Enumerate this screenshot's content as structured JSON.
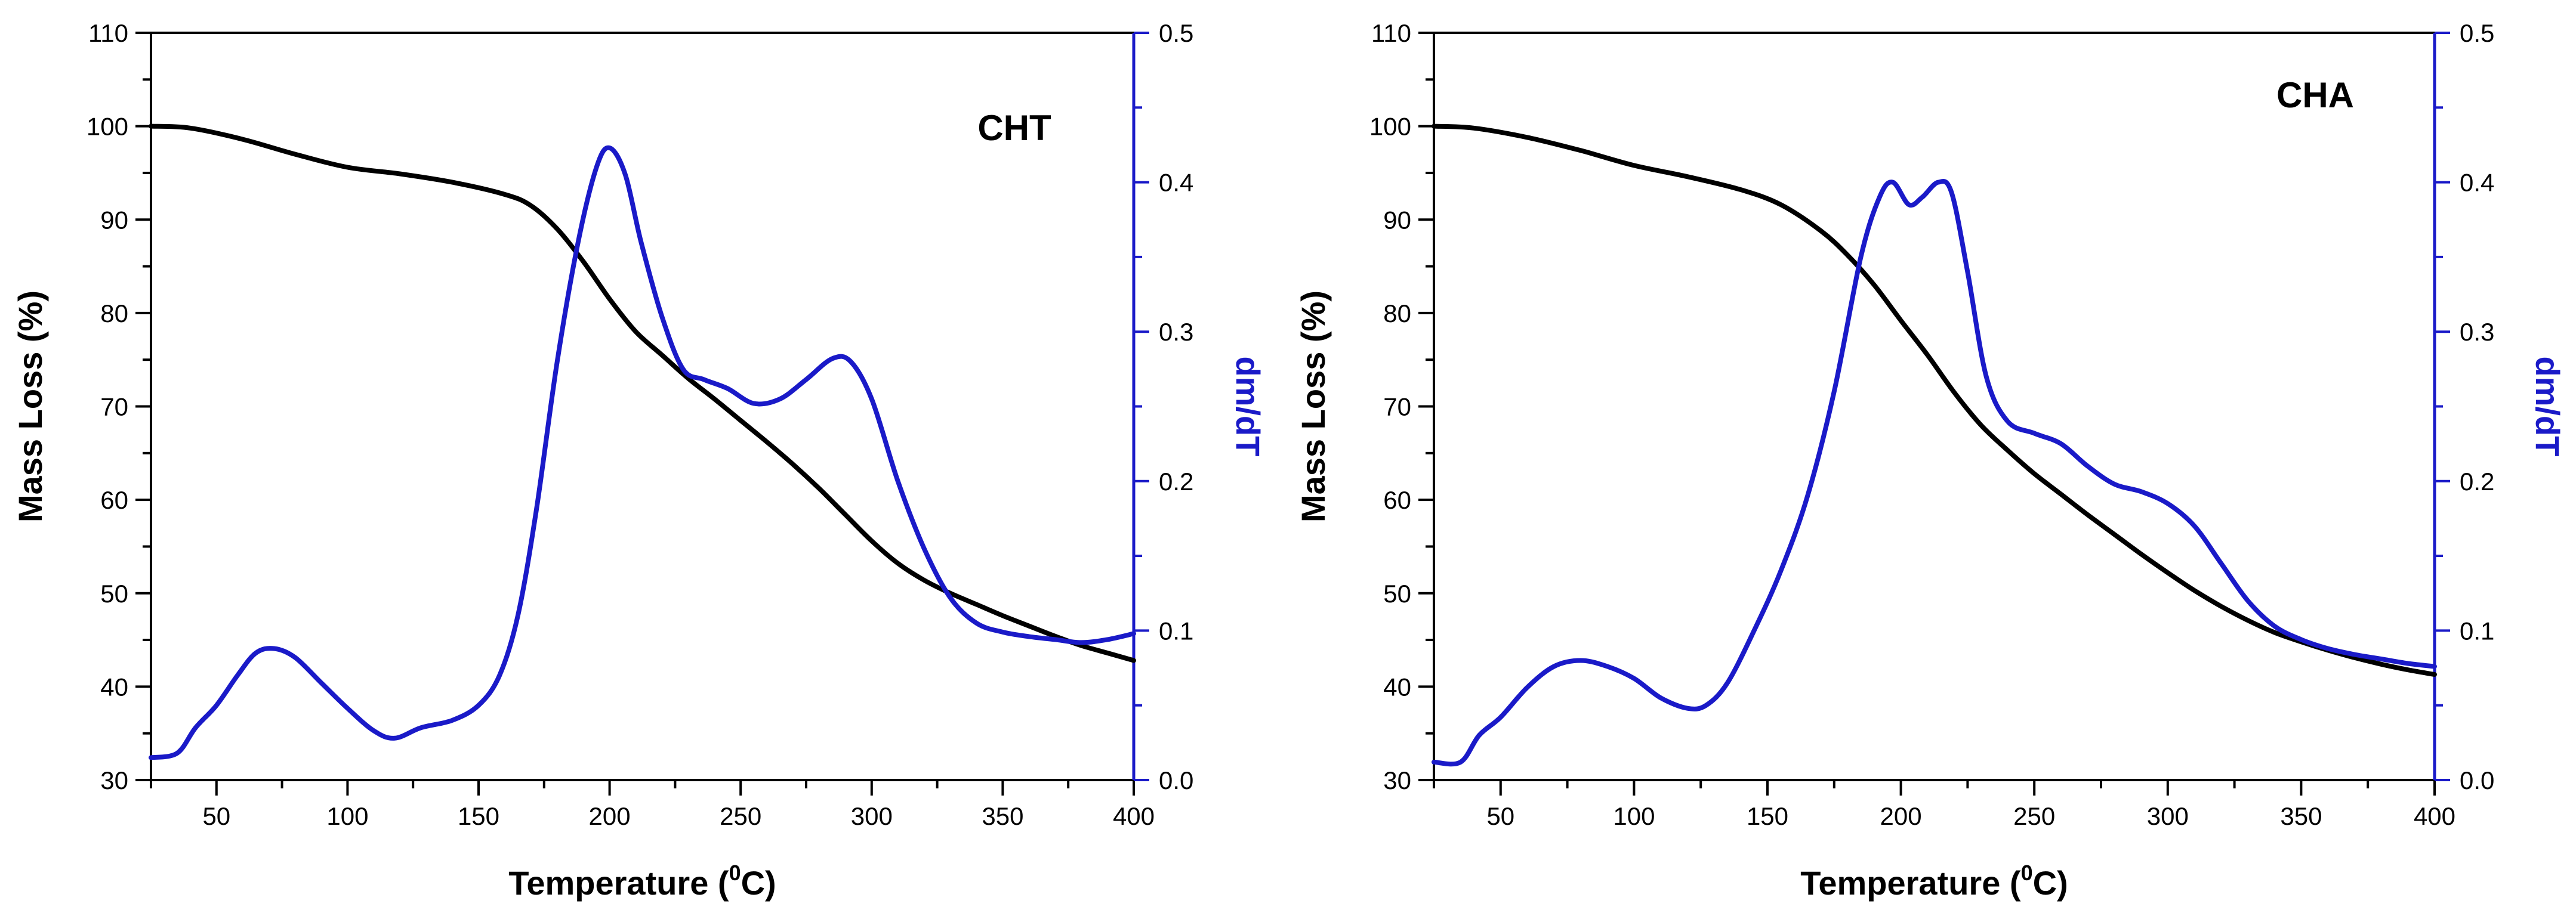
{
  "chart_data": [
    {
      "type": "line",
      "label": "CHT",
      "xlabel": "Temperature (",
      "xlabel_sup": "0",
      "xlabel_suffix": "C)",
      "ylabel": "Mass Loss (%)",
      "y2label": "dm/dT",
      "xlim": [
        25,
        400
      ],
      "ylim": [
        30,
        110
      ],
      "y2lim": [
        0.0,
        0.5
      ],
      "xticks": [
        50,
        100,
        150,
        200,
        250,
        300,
        350,
        400
      ],
      "yticks": [
        30,
        40,
        50,
        60,
        70,
        80,
        90,
        100,
        110
      ],
      "y2ticks": [
        "0.0",
        "0.1",
        "0.2",
        "0.3",
        "0.4",
        "0.5"
      ],
      "series": [
        {
          "name": "Mass Loss",
          "axis": "left",
          "color": "#000000",
          "points": [
            [
              25,
              100
            ],
            [
              40,
              99.8
            ],
            [
              60,
              98.6
            ],
            [
              80,
              97
            ],
            [
              100,
              95.6
            ],
            [
              120,
              94.9
            ],
            [
              140,
              94
            ],
            [
              160,
              92.7
            ],
            [
              170,
              91.5
            ],
            [
              180,
              89
            ],
            [
              190,
              85.5
            ],
            [
              200,
              81.5
            ],
            [
              210,
              78
            ],
            [
              220,
              75.5
            ],
            [
              230,
              73
            ],
            [
              240,
              70.8
            ],
            [
              250,
              68.5
            ],
            [
              260,
              66.2
            ],
            [
              270,
              63.8
            ],
            [
              280,
              61.2
            ],
            [
              290,
              58.4
            ],
            [
              300,
              55.6
            ],
            [
              310,
              53.2
            ],
            [
              320,
              51.4
            ],
            [
              330,
              50
            ],
            [
              340,
              48.8
            ],
            [
              350,
              47.6
            ],
            [
              360,
              46.5
            ],
            [
              370,
              45.4
            ],
            [
              380,
              44.4
            ],
            [
              390,
              43.6
            ],
            [
              400,
              42.8
            ]
          ]
        },
        {
          "name": "dm/dT",
          "axis": "right",
          "color": "#1a1ac8",
          "points": [
            [
              25,
              0.015
            ],
            [
              35,
              0.018
            ],
            [
              42,
              0.035
            ],
            [
              50,
              0.05
            ],
            [
              58,
              0.07
            ],
            [
              65,
              0.085
            ],
            [
              72,
              0.088
            ],
            [
              80,
              0.082
            ],
            [
              90,
              0.065
            ],
            [
              100,
              0.048
            ],
            [
              110,
              0.033
            ],
            [
              118,
              0.028
            ],
            [
              128,
              0.035
            ],
            [
              140,
              0.04
            ],
            [
              150,
              0.05
            ],
            [
              158,
              0.07
            ],
            [
              165,
              0.11
            ],
            [
              172,
              0.18
            ],
            [
              180,
              0.28
            ],
            [
              188,
              0.36
            ],
            [
              195,
              0.41
            ],
            [
              200,
              0.423
            ],
            [
              206,
              0.405
            ],
            [
              212,
              0.36
            ],
            [
              220,
              0.31
            ],
            [
              228,
              0.275
            ],
            [
              236,
              0.268
            ],
            [
              245,
              0.262
            ],
            [
              255,
              0.252
            ],
            [
              265,
              0.255
            ],
            [
              275,
              0.268
            ],
            [
              285,
              0.282
            ],
            [
              292,
              0.28
            ],
            [
              300,
              0.255
            ],
            [
              310,
              0.2
            ],
            [
              320,
              0.155
            ],
            [
              330,
              0.122
            ],
            [
              340,
              0.105
            ],
            [
              350,
              0.099
            ],
            [
              360,
              0.096
            ],
            [
              370,
              0.094
            ],
            [
              380,
              0.092
            ],
            [
              390,
              0.094
            ],
            [
              400,
              0.098
            ]
          ]
        }
      ]
    },
    {
      "type": "line",
      "label": "CHA",
      "xlabel": "Temperature (",
      "xlabel_sup": "0",
      "xlabel_suffix": "C)",
      "ylabel": "Mass Loss (%)",
      "y2label": "dm/dT",
      "xlim": [
        25,
        400
      ],
      "ylim": [
        30,
        110
      ],
      "y2lim": [
        0.0,
        0.5
      ],
      "xticks": [
        50,
        100,
        150,
        200,
        250,
        300,
        350,
        400
      ],
      "yticks": [
        30,
        40,
        50,
        60,
        70,
        80,
        90,
        100,
        110
      ],
      "y2ticks": [
        "0.0",
        "0.1",
        "0.2",
        "0.3",
        "0.4",
        "0.5"
      ],
      "series": [
        {
          "name": "Mass Loss",
          "axis": "left",
          "color": "#000000",
          "points": [
            [
              25,
              100
            ],
            [
              40,
              99.8
            ],
            [
              60,
              98.8
            ],
            [
              80,
              97.4
            ],
            [
              100,
              95.8
            ],
            [
              120,
              94.6
            ],
            [
              140,
              93.2
            ],
            [
              155,
              91.6
            ],
            [
              170,
              88.8
            ],
            [
              180,
              86.2
            ],
            [
              190,
              83
            ],
            [
              200,
              79.2
            ],
            [
              210,
              75.5
            ],
            [
              220,
              71.5
            ],
            [
              230,
              68
            ],
            [
              240,
              65.3
            ],
            [
              250,
              62.8
            ],
            [
              260,
              60.6
            ],
            [
              270,
              58.4
            ],
            [
              280,
              56.3
            ],
            [
              290,
              54.2
            ],
            [
              300,
              52.2
            ],
            [
              310,
              50.3
            ],
            [
              320,
              48.6
            ],
            [
              330,
              47.1
            ],
            [
              340,
              45.8
            ],
            [
              350,
              44.8
            ],
            [
              360,
              43.9
            ],
            [
              370,
              43.1
            ],
            [
              380,
              42.4
            ],
            [
              390,
              41.8
            ],
            [
              400,
              41.3
            ]
          ]
        },
        {
          "name": "dm/dT",
          "axis": "right",
          "color": "#1a1ac8",
          "points": [
            [
              25,
              0.012
            ],
            [
              35,
              0.012
            ],
            [
              42,
              0.03
            ],
            [
              50,
              0.042
            ],
            [
              60,
              0.062
            ],
            [
              70,
              0.076
            ],
            [
              80,
              0.08
            ],
            [
              90,
              0.076
            ],
            [
              100,
              0.068
            ],
            [
              110,
              0.055
            ],
            [
              120,
              0.048
            ],
            [
              127,
              0.05
            ],
            [
              135,
              0.065
            ],
            [
              145,
              0.1
            ],
            [
              155,
              0.14
            ],
            [
              165,
              0.19
            ],
            [
              175,
              0.26
            ],
            [
              185,
              0.35
            ],
            [
              192,
              0.39
            ],
            [
              197,
              0.4
            ],
            [
              203,
              0.385
            ],
            [
              208,
              0.39
            ],
            [
              214,
              0.4
            ],
            [
              219,
              0.393
            ],
            [
              225,
              0.34
            ],
            [
              232,
              0.27
            ],
            [
              240,
              0.24
            ],
            [
              250,
              0.232
            ],
            [
              260,
              0.225
            ],
            [
              270,
              0.21
            ],
            [
              280,
              0.198
            ],
            [
              290,
              0.193
            ],
            [
              300,
              0.185
            ],
            [
              310,
              0.17
            ],
            [
              320,
              0.145
            ],
            [
              330,
              0.12
            ],
            [
              340,
              0.103
            ],
            [
              350,
              0.094
            ],
            [
              360,
              0.088
            ],
            [
              370,
              0.084
            ],
            [
              380,
              0.081
            ],
            [
              390,
              0.078
            ],
            [
              400,
              0.076
            ]
          ]
        }
      ]
    }
  ]
}
